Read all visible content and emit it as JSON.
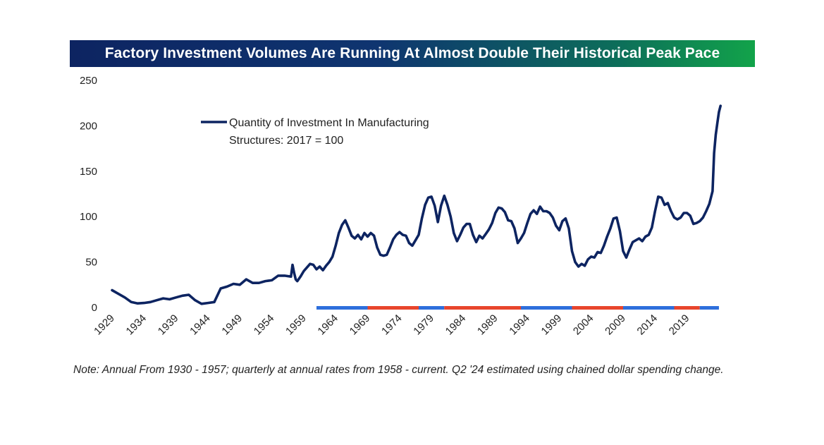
{
  "header": {
    "title": "Factory Investment Volumes Are Running At Almost Double Their Historical Peak Pace"
  },
  "note": "Note: Annual From 1930 - 1957; quarterly at annual rates from 1958 - current. Q2 '24 estimated using chained dollar spending change.",
  "colors": {
    "line": "#0d2461",
    "democrat": "#2e6fdc",
    "republican": "#e8452c",
    "banner_start": "#0d2461",
    "banner_end": "#12a34a"
  },
  "chart_data": {
    "type": "line",
    "title": "Factory Investment Volumes Are Running At Almost Double Their Historical Peak Pace",
    "xlabel": "",
    "ylabel": "",
    "xlim": [
      1929,
      2025
    ],
    "ylim": [
      0,
      250
    ],
    "yticks": [
      0,
      50,
      100,
      150,
      200,
      250
    ],
    "ytick_labels": [
      "0",
      "50",
      "100",
      "150",
      "200",
      "250"
    ],
    "xticks": [
      1929,
      1934,
      1939,
      1944,
      1949,
      1954,
      1959,
      1964,
      1969,
      1974,
      1979,
      1984,
      1989,
      1994,
      1999,
      2004,
      2009,
      2014,
      2019
    ],
    "xtick_labels": [
      "1929",
      "1934",
      "1939",
      "1944",
      "1949",
      "1954",
      "1959",
      "1964",
      "1969",
      "1974",
      "1979",
      "1984",
      "1989",
      "1994",
      "1999",
      "2004",
      "2009",
      "2014",
      "2019"
    ],
    "legend": {
      "label_line1": "Quantity of Investment In Manufacturing",
      "label_line2": "Structures: 2017 = 100",
      "position": "top-left"
    },
    "series": [
      {
        "name": "Quantity of Investment In Manufacturing Structures: 2017 = 100",
        "points": [
          [
            1929,
            19
          ],
          [
            1930,
            15
          ],
          [
            1931,
            11
          ],
          [
            1932,
            6
          ],
          [
            1933,
            4.5
          ],
          [
            1934,
            5
          ],
          [
            1935,
            6
          ],
          [
            1936,
            8
          ],
          [
            1937,
            10
          ],
          [
            1938,
            9
          ],
          [
            1939,
            11
          ],
          [
            1940,
            13
          ],
          [
            1941,
            14
          ],
          [
            1942,
            8
          ],
          [
            1943,
            4
          ],
          [
            1944,
            5
          ],
          [
            1945,
            6
          ],
          [
            1946,
            21
          ],
          [
            1947,
            23
          ],
          [
            1948,
            26
          ],
          [
            1949,
            25
          ],
          [
            1950,
            31
          ],
          [
            1951,
            27
          ],
          [
            1952,
            27
          ],
          [
            1953,
            29
          ],
          [
            1954,
            30
          ],
          [
            1955,
            35
          ],
          [
            1956,
            35
          ],
          [
            1957,
            34
          ],
          [
            1957.25,
            47
          ],
          [
            1957.5,
            38
          ],
          [
            1957.75,
            31
          ],
          [
            1958,
            29
          ],
          [
            1958.5,
            34
          ],
          [
            1959,
            40
          ],
          [
            1959.5,
            44
          ],
          [
            1960,
            48
          ],
          [
            1960.5,
            47
          ],
          [
            1961,
            42
          ],
          [
            1961.5,
            45
          ],
          [
            1962,
            41
          ],
          [
            1962.5,
            46
          ],
          [
            1963,
            50
          ],
          [
            1963.5,
            56
          ],
          [
            1964,
            68
          ],
          [
            1964.5,
            82
          ],
          [
            1965,
            91
          ],
          [
            1965.5,
            96
          ],
          [
            1966,
            88
          ],
          [
            1966.5,
            79
          ],
          [
            1967,
            76
          ],
          [
            1967.5,
            80
          ],
          [
            1968,
            75
          ],
          [
            1968.5,
            82
          ],
          [
            1969,
            78
          ],
          [
            1969.5,
            82
          ],
          [
            1970,
            79
          ],
          [
            1970.5,
            66
          ],
          [
            1971,
            58
          ],
          [
            1971.5,
            57
          ],
          [
            1972,
            58
          ],
          [
            1972.5,
            66
          ],
          [
            1973,
            75
          ],
          [
            1973.5,
            80
          ],
          [
            1974,
            83
          ],
          [
            1974.5,
            80
          ],
          [
            1975,
            79
          ],
          [
            1975.5,
            71
          ],
          [
            1976,
            68
          ],
          [
            1976.5,
            74
          ],
          [
            1977,
            80
          ],
          [
            1977.5,
            98
          ],
          [
            1978,
            113
          ],
          [
            1978.5,
            121
          ],
          [
            1979,
            122
          ],
          [
            1979.5,
            112
          ],
          [
            1980,
            94
          ],
          [
            1980.5,
            112
          ],
          [
            1981,
            123
          ],
          [
            1981.5,
            113
          ],
          [
            1982,
            100
          ],
          [
            1982.5,
            82
          ],
          [
            1983,
            73
          ],
          [
            1983.5,
            80
          ],
          [
            1984,
            88
          ],
          [
            1984.5,
            92
          ],
          [
            1985,
            92
          ],
          [
            1985.5,
            80
          ],
          [
            1986,
            72
          ],
          [
            1986.5,
            79
          ],
          [
            1987,
            76
          ],
          [
            1987.5,
            81
          ],
          [
            1988,
            86
          ],
          [
            1988.5,
            93
          ],
          [
            1989,
            104
          ],
          [
            1989.5,
            110
          ],
          [
            1990,
            109
          ],
          [
            1990.5,
            105
          ],
          [
            1991,
            96
          ],
          [
            1991.5,
            95
          ],
          [
            1992,
            87
          ],
          [
            1992.5,
            71
          ],
          [
            1993,
            76
          ],
          [
            1993.5,
            82
          ],
          [
            1994,
            93
          ],
          [
            1994.5,
            103
          ],
          [
            1995,
            107
          ],
          [
            1995.5,
            103
          ],
          [
            1996,
            111
          ],
          [
            1996.5,
            106
          ],
          [
            1997,
            106
          ],
          [
            1997.5,
            104
          ],
          [
            1998,
            99
          ],
          [
            1998.5,
            90
          ],
          [
            1999,
            85
          ],
          [
            1999.5,
            95
          ],
          [
            2000,
            98
          ],
          [
            2000.5,
            87
          ],
          [
            2001,
            62
          ],
          [
            2001.5,
            50
          ],
          [
            2002,
            45
          ],
          [
            2002.5,
            48
          ],
          [
            2003,
            46
          ],
          [
            2003.5,
            53
          ],
          [
            2004,
            56
          ],
          [
            2004.5,
            55
          ],
          [
            2005,
            61
          ],
          [
            2005.5,
            60
          ],
          [
            2006,
            68
          ],
          [
            2006.5,
            78
          ],
          [
            2007,
            87
          ],
          [
            2007.5,
            98
          ],
          [
            2008,
            99
          ],
          [
            2008.5,
            84
          ],
          [
            2009,
            62
          ],
          [
            2009.5,
            55
          ],
          [
            2010,
            64
          ],
          [
            2010.5,
            72
          ],
          [
            2011,
            74
          ],
          [
            2011.5,
            76
          ],
          [
            2012,
            73
          ],
          [
            2012.5,
            78
          ],
          [
            2013,
            80
          ],
          [
            2013.5,
            88
          ],
          [
            2014,
            106
          ],
          [
            2014.5,
            122
          ],
          [
            2015,
            121
          ],
          [
            2015.5,
            113
          ],
          [
            2016,
            115
          ],
          [
            2016.5,
            106
          ],
          [
            2017,
            99
          ],
          [
            2017.5,
            97
          ],
          [
            2018,
            99
          ],
          [
            2018.5,
            104
          ],
          [
            2019,
            104
          ],
          [
            2019.5,
            101
          ],
          [
            2020,
            92
          ],
          [
            2020.5,
            93
          ],
          [
            2021,
            95
          ],
          [
            2021.5,
            99
          ],
          [
            2022,
            106
          ],
          [
            2022.5,
            114
          ],
          [
            2023,
            128
          ],
          [
            2023.25,
            170
          ],
          [
            2023.5,
            190
          ],
          [
            2023.75,
            203
          ],
          [
            2024,
            215
          ],
          [
            2024.25,
            222
          ]
        ]
      }
    ],
    "presidential_bands": [
      {
        "party": "democrat",
        "start": 1961,
        "end": 1969
      },
      {
        "party": "republican",
        "start": 1969,
        "end": 1977
      },
      {
        "party": "democrat",
        "start": 1977,
        "end": 1981
      },
      {
        "party": "republican",
        "start": 1981,
        "end": 1993
      },
      {
        "party": "democrat",
        "start": 1993,
        "end": 2001
      },
      {
        "party": "republican",
        "start": 2001,
        "end": 2009
      },
      {
        "party": "democrat",
        "start": 2009,
        "end": 2017
      },
      {
        "party": "republican",
        "start": 2017,
        "end": 2021
      },
      {
        "party": "democrat",
        "start": 2021,
        "end": 2024
      }
    ]
  }
}
